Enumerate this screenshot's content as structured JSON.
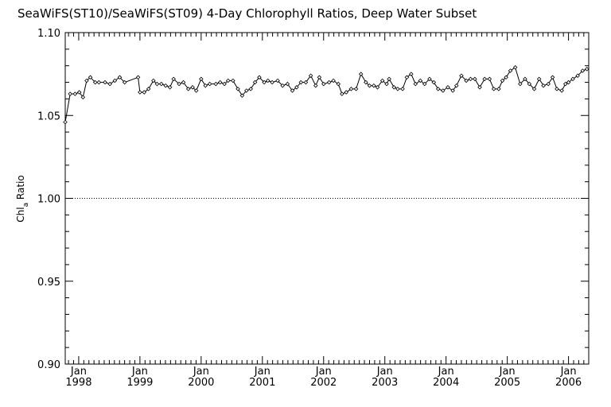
{
  "chart_data": {
    "type": "line",
    "title": "SeaWiFS(ST10)/SeaWiFS(ST09) 4-Day Chlorophyll Ratios, Deep Water Subset",
    "ylabel": {
      "main": "Chl",
      "sub": "a",
      "tail": " Ratio"
    },
    "xlabel": "",
    "ylim": [
      0.9,
      1.1
    ],
    "xlim": [
      1997.78,
      2006.33
    ],
    "yticks": [
      {
        "value": 0.9,
        "label": "0.90"
      },
      {
        "value": 0.95,
        "label": "0.95"
      },
      {
        "value": 1.0,
        "label": "1.00"
      },
      {
        "value": 1.05,
        "label": "1.05"
      },
      {
        "value": 1.1,
        "label": "1.10"
      }
    ],
    "yminor_step": 0.01,
    "xticks": [
      {
        "value": 1998,
        "month": "Jan",
        "year": "1998"
      },
      {
        "value": 1999,
        "month": "Jan",
        "year": "1999"
      },
      {
        "value": 2000,
        "month": "Jan",
        "year": "2000"
      },
      {
        "value": 2001,
        "month": "Jan",
        "year": "2001"
      },
      {
        "value": 2002,
        "month": "Jan",
        "year": "2002"
      },
      {
        "value": 2003,
        "month": "Jan",
        "year": "2003"
      },
      {
        "value": 2004,
        "month": "Jan",
        "year": "2004"
      },
      {
        "value": 2005,
        "month": "Jan",
        "year": "2005"
      },
      {
        "value": 2006,
        "month": "Jan",
        "year": "2006"
      }
    ],
    "xminor_step": 0.0833333,
    "reference_line": {
      "y": 1.0,
      "style": "dotted"
    },
    "grid": false,
    "legend": "none",
    "series": [
      {
        "marker": "open-diamond",
        "x": [
          1997.78,
          1997.86,
          1997.94,
          1998.01,
          1998.07,
          1998.13,
          1998.19,
          1998.27,
          1998.33,
          1998.43,
          1998.51,
          1998.59,
          1998.67,
          1998.75,
          1998.97,
          1999.0,
          1999.07,
          1999.14,
          1999.22,
          1999.28,
          1999.35,
          1999.42,
          1999.49,
          1999.55,
          1999.64,
          1999.71,
          1999.79,
          1999.86,
          1999.92,
          2000.0,
          2000.07,
          2000.14,
          2000.24,
          2000.31,
          2000.38,
          2000.44,
          2000.52,
          2000.6,
          2000.67,
          2000.74,
          2000.81,
          2000.88,
          2000.95,
          2001.03,
          2001.09,
          2001.16,
          2001.25,
          2001.33,
          2001.41,
          2001.49,
          2001.56,
          2001.63,
          2001.71,
          2001.79,
          2001.87,
          2001.93,
          2002.0,
          2002.09,
          2002.16,
          2002.24,
          2002.3,
          2002.37,
          2002.45,
          2002.53,
          2002.61,
          2002.69,
          2002.75,
          2002.82,
          2002.88,
          2002.96,
          2003.03,
          2003.07,
          2003.15,
          2003.21,
          2003.29,
          2003.36,
          2003.43,
          2003.5,
          2003.58,
          2003.65,
          2003.73,
          2003.8,
          2003.87,
          2003.95,
          2004.03,
          2004.11,
          2004.17,
          2004.25,
          2004.33,
          2004.4,
          2004.47,
          2004.55,
          2004.63,
          2004.71,
          2004.78,
          2004.86,
          2004.92,
          2004.98,
          2005.05,
          2005.13,
          2005.21,
          2005.29,
          2005.36,
          2005.44,
          2005.52,
          2005.59,
          2005.67,
          2005.74,
          2005.81,
          2005.89,
          2005.95,
          2006.0,
          2006.07,
          2006.15,
          2006.23,
          2006.3
        ],
        "y": [
          1.046,
          1.063,
          1.063,
          1.064,
          1.061,
          1.071,
          1.073,
          1.07,
          1.07,
          1.07,
          1.069,
          1.071,
          1.073,
          1.07,
          1.073,
          1.064,
          1.064,
          1.066,
          1.071,
          1.069,
          1.069,
          1.068,
          1.067,
          1.072,
          1.069,
          1.07,
          1.066,
          1.067,
          1.065,
          1.072,
          1.068,
          1.069,
          1.069,
          1.07,
          1.069,
          1.071,
          1.071,
          1.066,
          1.062,
          1.065,
          1.066,
          1.07,
          1.073,
          1.07,
          1.071,
          1.07,
          1.071,
          1.068,
          1.069,
          1.065,
          1.067,
          1.07,
          1.07,
          1.074,
          1.068,
          1.073,
          1.069,
          1.07,
          1.071,
          1.069,
          1.063,
          1.064,
          1.066,
          1.066,
          1.075,
          1.07,
          1.068,
          1.068,
          1.067,
          1.071,
          1.069,
          1.072,
          1.067,
          1.066,
          1.066,
          1.073,
          1.075,
          1.069,
          1.071,
          1.069,
          1.072,
          1.07,
          1.066,
          1.065,
          1.067,
          1.065,
          1.068,
          1.074,
          1.071,
          1.072,
          1.072,
          1.067,
          1.072,
          1.072,
          1.066,
          1.066,
          1.071,
          1.073,
          1.077,
          1.079,
          1.069,
          1.072,
          1.069,
          1.066,
          1.072,
          1.068,
          1.069,
          1.073,
          1.066,
          1.065,
          1.069,
          1.07,
          1.072,
          1.074,
          1.077,
          1.078
        ]
      }
    ]
  }
}
